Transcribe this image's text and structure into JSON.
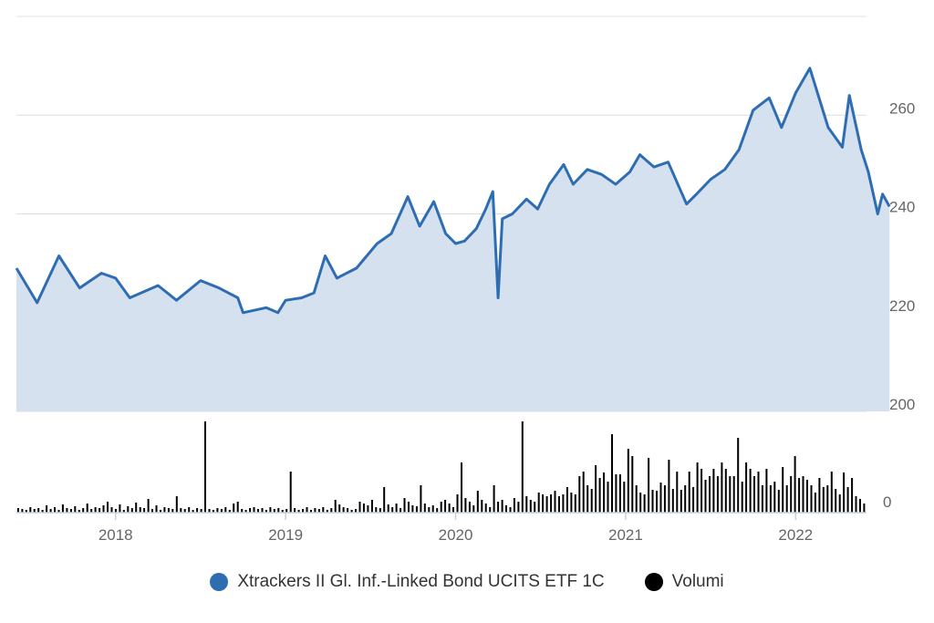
{
  "chart_data": {
    "type": "area",
    "x_ticks": [
      "2018",
      "2019",
      "2020",
      "2021",
      "2022"
    ],
    "xlim": [
      "2017-06",
      "2022-06"
    ],
    "price": {
      "ylim": [
        200,
        280
      ],
      "y_ticks": [
        200,
        220,
        240,
        260
      ],
      "y_tick_labels": [
        "200",
        "220",
        "240",
        "260"
      ],
      "axis_side": "right",
      "grid": true,
      "color": "#2f6db3",
      "fill": "#d6e1f0",
      "series": [
        {
          "name": "Xtrackers II Gl. Inf.-Linked Bond UCITS ETF 1C",
          "points": [
            [
              "2017-06-01",
              229
            ],
            [
              "2017-07-15",
              222
            ],
            [
              "2017-09-01",
              231.5
            ],
            [
              "2017-10-15",
              225
            ],
            [
              "2017-12-01",
              228
            ],
            [
              "2018-01-01",
              227
            ],
            [
              "2018-02-01",
              223
            ],
            [
              "2018-04-01",
              225.5
            ],
            [
              "2018-05-10",
              222.5
            ],
            [
              "2018-07-01",
              226.5
            ],
            [
              "2018-08-10",
              225
            ],
            [
              "2018-09-20",
              223
            ],
            [
              "2018-10-01",
              220
            ],
            [
              "2018-11-20",
              221
            ],
            [
              "2018-12-15",
              220
            ],
            [
              "2019-01-01",
              222.5
            ],
            [
              "2019-02-05",
              223
            ],
            [
              "2019-03-01",
              224
            ],
            [
              "2019-03-25",
              231.5
            ],
            [
              "2019-04-20",
              227
            ],
            [
              "2019-06-01",
              229
            ],
            [
              "2019-07-15",
              234
            ],
            [
              "2019-08-15",
              236
            ],
            [
              "2019-09-20",
              243.5
            ],
            [
              "2019-10-15",
              237.5
            ],
            [
              "2019-11-15",
              242.5
            ],
            [
              "2019-12-10",
              236
            ],
            [
              "2020-01-01",
              234
            ],
            [
              "2020-01-20",
              234.5
            ],
            [
              "2020-02-15",
              237
            ],
            [
              "2020-03-05",
              241
            ],
            [
              "2020-03-20",
              244.5
            ],
            [
              "2020-04-01",
              223
            ],
            [
              "2020-04-10",
              239
            ],
            [
              "2020-05-01",
              240
            ],
            [
              "2020-06-01",
              243
            ],
            [
              "2020-06-25",
              241
            ],
            [
              "2020-07-20",
              246
            ],
            [
              "2020-08-20",
              250
            ],
            [
              "2020-09-10",
              246
            ],
            [
              "2020-10-10",
              249
            ],
            [
              "2020-11-10",
              248
            ],
            [
              "2020-12-10",
              246
            ],
            [
              "2021-01-10",
              248.5
            ],
            [
              "2021-02-01",
              252
            ],
            [
              "2021-03-01",
              249.5
            ],
            [
              "2021-04-01",
              250.5
            ],
            [
              "2021-05-10",
              242
            ],
            [
              "2021-06-01",
              244
            ],
            [
              "2021-07-01",
              247
            ],
            [
              "2021-08-01",
              249
            ],
            [
              "2021-09-01",
              253
            ],
            [
              "2021-10-01",
              261
            ],
            [
              "2021-11-05",
              263.5
            ],
            [
              "2021-12-01",
              257.5
            ],
            [
              "2022-01-01",
              264.5
            ],
            [
              "2022-02-01",
              269.5
            ],
            [
              "2022-03-10",
              257.5
            ],
            [
              "2022-04-10",
              253.5
            ],
            [
              "2022-04-25",
              264
            ],
            [
              "2022-05-20",
              253
            ],
            [
              "2022-06-05",
              248.5
            ],
            [
              "2022-06-25",
              240
            ],
            [
              "2022-07-05",
              244
            ],
            [
              "2022-07-20",
              241.5
            ]
          ]
        }
      ]
    },
    "volume": {
      "y_ticks": [
        0
      ],
      "y_tick_labels": [
        "0"
      ],
      "series_name": "Volumi",
      "color": "#000000",
      "relative_values": [
        0.05,
        0.04,
        0.03,
        0.06,
        0.04,
        0.05,
        0.03,
        0.08,
        0.04,
        0.06,
        0.03,
        0.09,
        0.05,
        0.04,
        0.07,
        0.03,
        0.05,
        0.1,
        0.04,
        0.06,
        0.05,
        0.08,
        0.12,
        0.06,
        0.04,
        0.09,
        0.03,
        0.07,
        0.05,
        0.11,
        0.06,
        0.05,
        0.15,
        0.04,
        0.08,
        0.03,
        0.06,
        0.05,
        0.04,
        0.18,
        0.05,
        0.04,
        0.06,
        0.03,
        0.05,
        0.04,
        1.0,
        0.04,
        0.03,
        0.05,
        0.04,
        0.06,
        0.03,
        0.1,
        0.12,
        0.04,
        0.03,
        0.05,
        0.06,
        0.04,
        0.05,
        0.03,
        0.06,
        0.04,
        0.05,
        0.03,
        0.04,
        0.45,
        0.05,
        0.03,
        0.04,
        0.06,
        0.03,
        0.05,
        0.04,
        0.06,
        0.03,
        0.05,
        0.14,
        0.09,
        0.06,
        0.05,
        0.03,
        0.04,
        0.12,
        0.1,
        0.08,
        0.14,
        0.06,
        0.05,
        0.28,
        0.09,
        0.06,
        0.1,
        0.05,
        0.16,
        0.12,
        0.08,
        0.07,
        0.3,
        0.1,
        0.06,
        0.08,
        0.05,
        0.12,
        0.14,
        0.1,
        0.06,
        0.2,
        0.55,
        0.16,
        0.12,
        0.08,
        0.24,
        0.14,
        0.1,
        0.06,
        0.3,
        0.12,
        0.14,
        0.08,
        0.06,
        0.16,
        0.12,
        1.0,
        0.18,
        0.14,
        0.12,
        0.22,
        0.2,
        0.18,
        0.2,
        0.24,
        0.18,
        0.2,
        0.28,
        0.22,
        0.2,
        0.4,
        0.45,
        0.3,
        0.26,
        0.52,
        0.38,
        0.44,
        0.34,
        0.86,
        0.42,
        0.42,
        0.34,
        0.7,
        0.62,
        0.3,
        0.22,
        0.2,
        0.6,
        0.25,
        0.24,
        0.33,
        0.3,
        0.58,
        0.26,
        0.45,
        0.25,
        0.3,
        0.45,
        0.28,
        0.55,
        0.48,
        0.36,
        0.4,
        0.48,
        0.4,
        0.55,
        0.48,
        0.4,
        0.4,
        0.82,
        0.34,
        0.55,
        0.48,
        0.4,
        0.45,
        0.3,
        0.48,
        0.3,
        0.34,
        0.25,
        0.5,
        0.3,
        0.4,
        0.62,
        0.38,
        0.4,
        0.36,
        0.3,
        0.22,
        0.38,
        0.28,
        0.3,
        0.45,
        0.26,
        0.2,
        0.44,
        0.28,
        0.38,
        0.18,
        0.15,
        0.1
      ]
    },
    "legend_placement": "bottom-center"
  },
  "legend": {
    "items": [
      {
        "label": "Xtrackers II Gl. Inf.-Linked Bond UCITS ETF 1C",
        "color": "#2f6db3"
      },
      {
        "label": "Volumi",
        "color": "#000000"
      }
    ]
  }
}
